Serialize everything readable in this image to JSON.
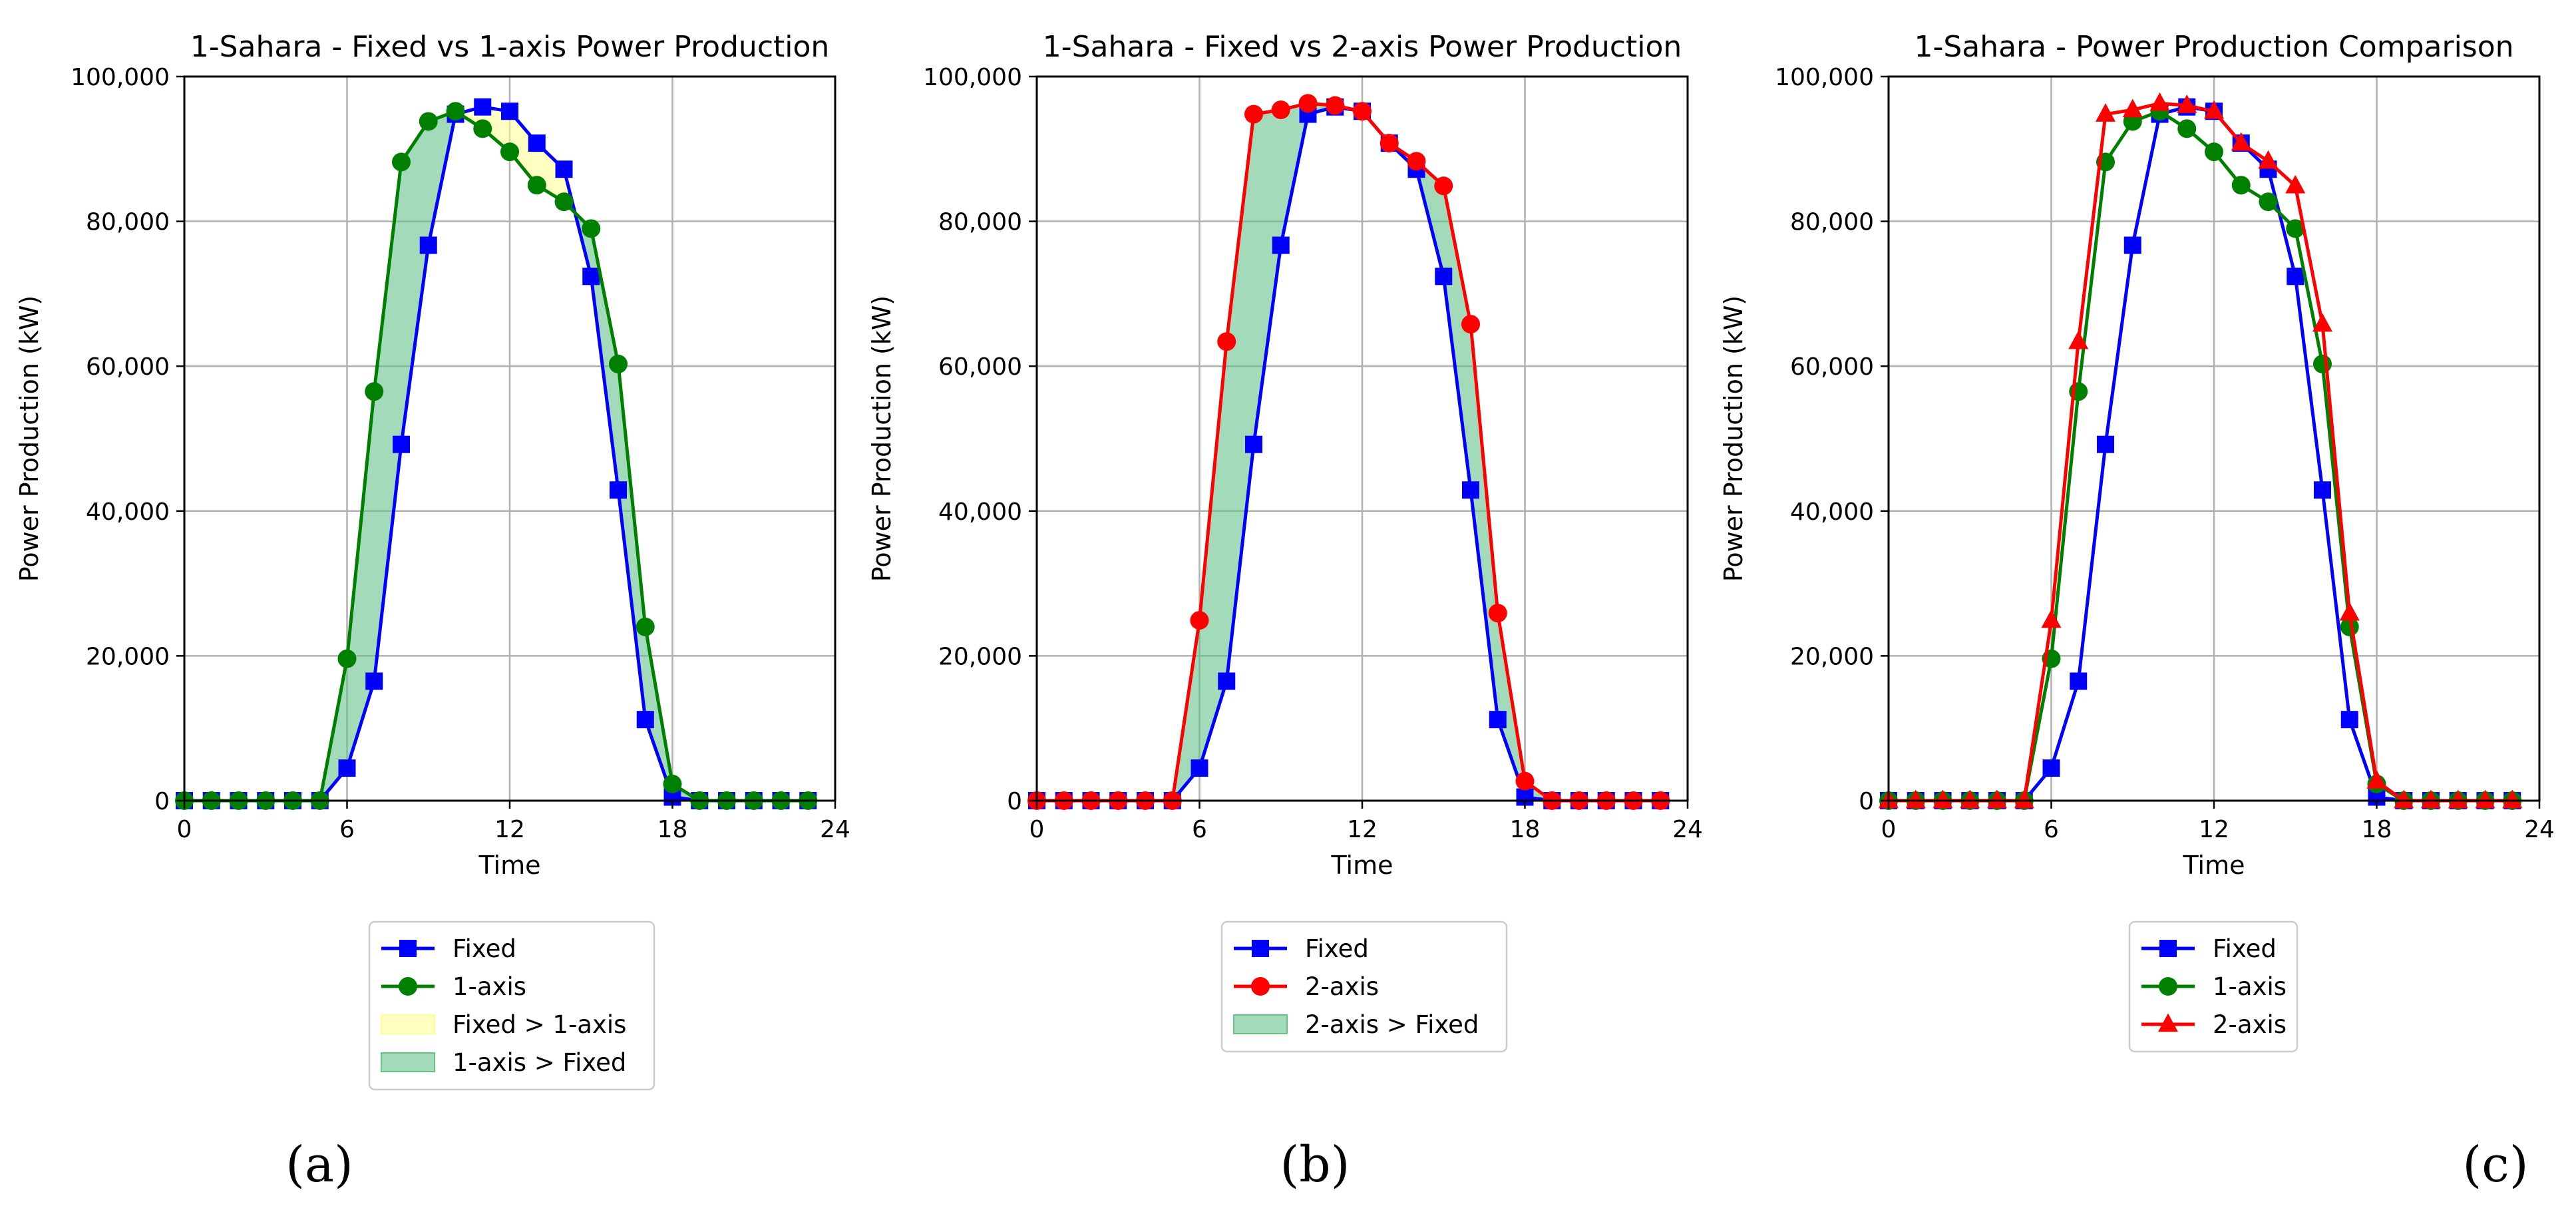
{
  "chart_data": [
    {
      "type": "line",
      "panel_label": "(a)",
      "title": "1-Sahara - Fixed vs 1-axis Power Production",
      "xlabel": "Time",
      "ylabel": "Power Production (kW)",
      "xlim": [
        0,
        24
      ],
      "ylim": [
        0,
        100000
      ],
      "xticks": [
        0,
        6,
        12,
        18,
        24
      ],
      "yticks": [
        0,
        20000,
        40000,
        60000,
        80000,
        100000
      ],
      "ytick_labels": [
        "0",
        "20,000",
        "40,000",
        "60,000",
        "80,000",
        "100,000"
      ],
      "grid": true,
      "x": [
        0,
        1,
        2,
        3,
        4,
        5,
        6,
        7,
        8,
        9,
        10,
        11,
        12,
        13,
        14,
        15,
        16,
        17,
        18,
        19,
        20,
        21,
        22,
        23
      ],
      "series": [
        {
          "name": "Fixed",
          "color": "#0000ff",
          "marker": "square",
          "values": [
            0,
            0,
            0,
            0,
            0,
            0,
            4500,
            16500,
            49200,
            76700,
            94800,
            95800,
            95200,
            90800,
            87200,
            72400,
            42900,
            11200,
            500,
            0,
            0,
            0,
            0,
            0
          ]
        },
        {
          "name": "1-axis",
          "color": "#008000",
          "marker": "circle",
          "values": [
            0,
            0,
            0,
            0,
            0,
            0,
            19600,
            56500,
            88200,
            93800,
            95200,
            92800,
            89600,
            85000,
            82700,
            79000,
            60300,
            24000,
            2300,
            0,
            0,
            0,
            0,
            0
          ]
        }
      ],
      "fills": [
        {
          "name": "Fixed > 1-axis",
          "color": "#ffff99",
          "a": "Fixed",
          "b": "1-axis"
        },
        {
          "name": "1-axis > Fixed",
          "color": "#66c28a",
          "a": "1-axis",
          "b": "Fixed"
        }
      ],
      "legend": [
        "Fixed",
        "1-axis",
        "Fixed > 1-axis",
        "1-axis > Fixed"
      ],
      "legend_placement": "below"
    },
    {
      "type": "line",
      "panel_label": "(b)",
      "title": "1-Sahara - Fixed vs 2-axis Power Production",
      "xlabel": "Time",
      "ylabel": "Power Production (kW)",
      "xlim": [
        0,
        24
      ],
      "ylim": [
        0,
        100000
      ],
      "xticks": [
        0,
        6,
        12,
        18,
        24
      ],
      "yticks": [
        0,
        20000,
        40000,
        60000,
        80000,
        100000
      ],
      "ytick_labels": [
        "0",
        "20,000",
        "40,000",
        "60,000",
        "80,000",
        "100,000"
      ],
      "grid": true,
      "x": [
        0,
        1,
        2,
        3,
        4,
        5,
        6,
        7,
        8,
        9,
        10,
        11,
        12,
        13,
        14,
        15,
        16,
        17,
        18,
        19,
        20,
        21,
        22,
        23
      ],
      "series": [
        {
          "name": "Fixed",
          "color": "#0000ff",
          "marker": "square",
          "values": [
            0,
            0,
            0,
            0,
            0,
            0,
            4500,
            16500,
            49200,
            76700,
            94800,
            95800,
            95200,
            90800,
            87200,
            72400,
            42900,
            11200,
            500,
            0,
            0,
            0,
            0,
            0
          ]
        },
        {
          "name": "2-axis",
          "color": "#ff0000",
          "marker": "circle",
          "values": [
            0,
            0,
            0,
            0,
            0,
            0,
            24900,
            63400,
            94800,
            95400,
            96300,
            96000,
            95200,
            90800,
            88300,
            84900,
            65800,
            25900,
            2700,
            0,
            0,
            0,
            0,
            0
          ]
        }
      ],
      "fills": [
        {
          "name": "2-axis > Fixed",
          "color": "#66c28a",
          "a": "2-axis",
          "b": "Fixed"
        }
      ],
      "legend": [
        "Fixed",
        "2-axis",
        "2-axis > Fixed"
      ],
      "legend_placement": "below"
    },
    {
      "type": "line",
      "panel_label": "(c)",
      "title": "1-Sahara - Power Production Comparison",
      "xlabel": "Time",
      "ylabel": "Power Production (kW)",
      "xlim": [
        0,
        24
      ],
      "ylim": [
        0,
        100000
      ],
      "xticks": [
        0,
        6,
        12,
        18,
        24
      ],
      "yticks": [
        0,
        20000,
        40000,
        60000,
        80000,
        100000
      ],
      "ytick_labels": [
        "0",
        "20,000",
        "40,000",
        "60,000",
        "80,000",
        "100,000"
      ],
      "grid": true,
      "x": [
        0,
        1,
        2,
        3,
        4,
        5,
        6,
        7,
        8,
        9,
        10,
        11,
        12,
        13,
        14,
        15,
        16,
        17,
        18,
        19,
        20,
        21,
        22,
        23
      ],
      "series": [
        {
          "name": "Fixed",
          "color": "#0000ff",
          "marker": "square",
          "values": [
            0,
            0,
            0,
            0,
            0,
            0,
            4500,
            16500,
            49200,
            76700,
            94800,
            95800,
            95200,
            90800,
            87200,
            72400,
            42900,
            11200,
            500,
            0,
            0,
            0,
            0,
            0
          ]
        },
        {
          "name": "1-axis",
          "color": "#008000",
          "marker": "circle",
          "values": [
            0,
            0,
            0,
            0,
            0,
            0,
            19600,
            56500,
            88200,
            93800,
            95200,
            92800,
            89600,
            85000,
            82700,
            79000,
            60300,
            24000,
            2300,
            0,
            0,
            0,
            0,
            0
          ]
        },
        {
          "name": "2-axis",
          "color": "#ff0000",
          "marker": "triangle",
          "values": [
            0,
            0,
            0,
            0,
            0,
            0,
            24900,
            63400,
            94800,
            95400,
            96300,
            96000,
            95200,
            90800,
            88300,
            84900,
            65800,
            25900,
            2700,
            0,
            0,
            0,
            0,
            0
          ]
        }
      ],
      "fills": [],
      "legend": [
        "Fixed",
        "1-axis",
        "2-axis"
      ],
      "legend_placement": "below"
    }
  ]
}
